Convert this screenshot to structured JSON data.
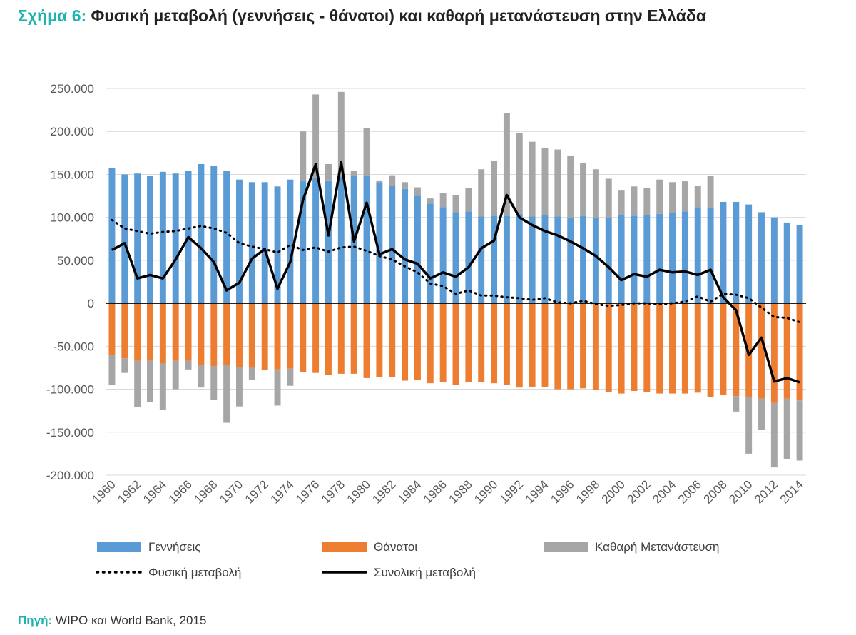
{
  "figure": {
    "label": "Σχήμα 6:",
    "title": "Φυσική μεταβολή (γεννήσεις - θάνατοι) και καθαρή μετανάστευση στην Ελλάδα",
    "source_label": "Πηγή:",
    "source_text": "WIPO και World Bank, 2015"
  },
  "chart_data": {
    "type": "bar",
    "title": "Φυσική μεταβολή (γεννήσεις - θάνατοι) και καθαρή μετανάστευση στην Ελλάδα",
    "xlabel": "",
    "ylabel": "",
    "ylim": [
      -200000,
      250000
    ],
    "yticks": [
      250000,
      200000,
      150000,
      100000,
      50000,
      0,
      -50000,
      -100000,
      -150000,
      -200000
    ],
    "ytick_labels": [
      "250.000",
      "200.000",
      "150.000",
      "100.000",
      "50.000",
      "0",
      "-50.000",
      "-100.000",
      "-150.000",
      "-200.000"
    ],
    "grid": true,
    "legend_position": "bottom",
    "x": [
      1960,
      1961,
      1962,
      1963,
      1964,
      1965,
      1966,
      1967,
      1968,
      1969,
      1970,
      1971,
      1972,
      1973,
      1974,
      1975,
      1976,
      1977,
      1978,
      1979,
      1980,
      1981,
      1982,
      1983,
      1984,
      1985,
      1986,
      1987,
      1988,
      1989,
      1990,
      1991,
      1992,
      1993,
      1994,
      1995,
      1996,
      1997,
      1998,
      1999,
      2000,
      2001,
      2002,
      2003,
      2004,
      2005,
      2006,
      2007,
      2008,
      2009,
      2010,
      2011,
      2012,
      2013,
      2014
    ],
    "x_tick_labels": [
      "1960",
      "1962",
      "1964",
      "1966",
      "1968",
      "1970",
      "1972",
      "1974",
      "1976",
      "1978",
      "1980",
      "1982",
      "1984",
      "1986",
      "1988",
      "1990",
      "1992",
      "1994",
      "1996",
      "1998",
      "2000",
      "2002",
      "2004",
      "2006",
      "2008",
      "2010",
      "2012",
      "2014"
    ],
    "series": [
      {
        "name": "Γεννήσεις",
        "kind": "bar",
        "color": "#5b9bd5",
        "values": [
          157000,
          150000,
          151000,
          148000,
          153000,
          151000,
          154000,
          162000,
          160000,
          154000,
          144000,
          141000,
          141000,
          136000,
          144000,
          142000,
          146000,
          143000,
          147000,
          148000,
          148000,
          141000,
          137000,
          133000,
          125000,
          116000,
          112000,
          106000,
          107000,
          101000,
          102000,
          102000,
          104000,
          101000,
          103000,
          101000,
          100000,
          102000,
          100000,
          100000,
          103000,
          102000,
          103000,
          104000,
          105000,
          107000,
          112000,
          111000,
          118000,
          118000,
          115000,
          106000,
          100000,
          94000,
          91000
        ]
      },
      {
        "name": "Θάνατοι",
        "kind": "bar",
        "color": "#ed7d31",
        "values": [
          -60000,
          -64000,
          -67000,
          -67000,
          -70000,
          -67000,
          -67000,
          -72000,
          -73000,
          -72000,
          -74000,
          -75000,
          -78000,
          -77000,
          -76000,
          -80000,
          -81000,
          -83000,
          -82000,
          -82000,
          -87000,
          -86000,
          -86000,
          -90000,
          -89000,
          -93000,
          -92000,
          -95000,
          -92000,
          -92000,
          -93000,
          -95000,
          -98000,
          -97000,
          -97000,
          -100000,
          -100000,
          -99000,
          -101000,
          -103000,
          -105000,
          -102000,
          -103000,
          -105000,
          -105000,
          -105000,
          -104000,
          -109000,
          -107000,
          -108000,
          -109000,
          -111000,
          -116000,
          -111000,
          -113000
        ]
      },
      {
        "name": "Καθαρή Μετανάστευση",
        "kind": "bar",
        "color": "#a6a6a6",
        "values": [
          -35000,
          -17000,
          -54000,
          -48000,
          -54000,
          -33000,
          -10000,
          -26000,
          -39000,
          -67000,
          -46000,
          -14000,
          0,
          -42000,
          -20000,
          58000,
          97000,
          19000,
          99000,
          6000,
          56000,
          2000,
          12000,
          8000,
          10000,
          6000,
          16000,
          20000,
          27000,
          55000,
          64000,
          119000,
          94000,
          87000,
          78000,
          78000,
          72000,
          61000,
          56000,
          45000,
          29000,
          34000,
          31000,
          40000,
          36000,
          35000,
          25000,
          37000,
          0,
          -18000,
          -66000,
          -36000,
          -75000,
          -70000,
          -70000
        ]
      },
      {
        "name": "Φυσική μεταβολή",
        "kind": "line",
        "style": "dotted",
        "color": "#000000",
        "values": [
          97000,
          87000,
          84000,
          81000,
          83000,
          84000,
          87000,
          90000,
          87000,
          82000,
          70000,
          66000,
          63000,
          59000,
          68000,
          62000,
          65000,
          60000,
          65000,
          66000,
          61000,
          55000,
          51000,
          43000,
          36000,
          23000,
          20000,
          11000,
          15000,
          9000,
          9000,
          7000,
          6000,
          4000,
          6000,
          1000,
          0,
          3000,
          -1000,
          -3000,
          -2000,
          0,
          0,
          -1000,
          0,
          2000,
          8000,
          2000,
          11000,
          10000,
          6000,
          -5000,
          -16000,
          -17000,
          -22000
        ]
      },
      {
        "name": "Συνολική μεταβολή",
        "kind": "line",
        "style": "solid",
        "color": "#000000",
        "values": [
          62000,
          70000,
          29000,
          33000,
          29000,
          51000,
          77000,
          64000,
          48000,
          15000,
          24000,
          52000,
          63000,
          17000,
          48000,
          120000,
          162000,
          79000,
          164000,
          72000,
          117000,
          57000,
          63000,
          51000,
          46000,
          29000,
          36000,
          31000,
          42000,
          64000,
          73000,
          126000,
          100000,
          91000,
          84000,
          79000,
          72000,
          64000,
          55000,
          42000,
          27000,
          34000,
          31000,
          39000,
          36000,
          37000,
          33000,
          39000,
          7000,
          -8000,
          -60000,
          -40000,
          -91000,
          -87000,
          -92000
        ]
      }
    ]
  }
}
